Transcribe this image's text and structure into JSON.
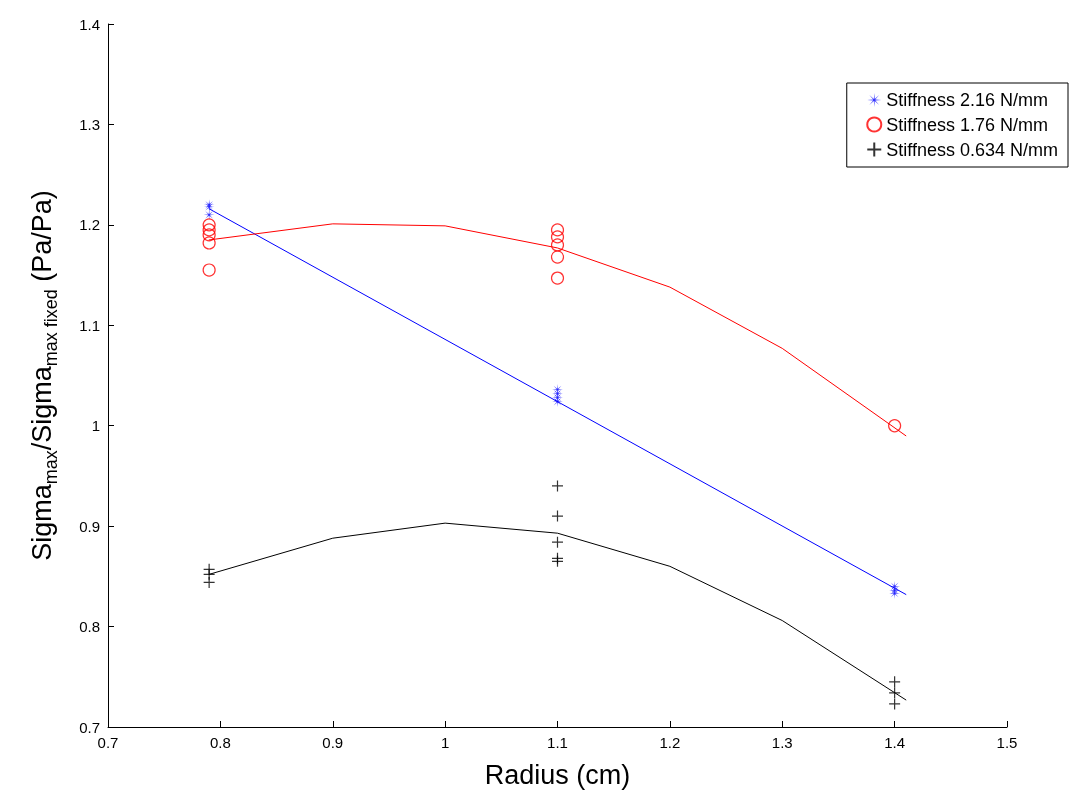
{
  "chart_data": {
    "type": "scatter",
    "xlabel": "Radius (cm)",
    "ylabel": "Sigma$_{max}$/Sigma$_{max fixed}$ (Pa/Pa)",
    "xlim": [
      0.7,
      1.5
    ],
    "xticks": [
      0.7,
      0.8,
      0.9,
      1,
      1.1,
      1.2,
      1.3,
      1.4,
      1.5
    ],
    "ylim": [
      0.7,
      1.4
    ],
    "yticks": [
      0.7,
      0.8,
      0.9,
      1,
      1.1,
      1.2,
      1.3,
      1.4
    ],
    "grid": false,
    "legend": "top right",
    "series": [
      {
        "name": "Stiffness 2.16 N/mm",
        "color": "#0000ff",
        "marker": "star",
        "x": [
          0.79,
          0.79,
          0.79,
          1.1,
          1.1,
          1.1,
          1.1,
          1.4,
          1.4,
          1.4
        ],
        "values": [
          1.22,
          1.218,
          1.21,
          1.036,
          1.032,
          1.028,
          1.024,
          0.84,
          0.836,
          0.833
        ]
      },
      {
        "name": "Stiffness 1.76 N/mm",
        "color": "#ff0000",
        "marker": "circle",
        "x": [
          0.79,
          0.79,
          0.79,
          0.79,
          0.79,
          1.1,
          1.1,
          1.1,
          1.1,
          1.1,
          1.4
        ],
        "values": [
          1.2,
          1.195,
          1.19,
          1.182,
          1.155,
          1.195,
          1.188,
          1.18,
          1.168,
          1.147,
          1.0
        ]
      },
      {
        "name": "Stiffness 0.634 N/mm",
        "color": "#000000",
        "marker": "cross",
        "x": [
          0.79,
          0.79,
          0.79,
          1.1,
          1.1,
          1.1,
          1.1,
          1.1,
          1.4,
          1.4,
          1.4
        ],
        "values": [
          0.857,
          0.852,
          0.844,
          0.94,
          0.91,
          0.884,
          0.868,
          0.865,
          0.745,
          0.734,
          0.723
        ]
      },
      {
        "type": "line",
        "color": "#0000ff",
        "marker": "none",
        "line_style": "solid",
        "x": [
          0.79,
          1.41
        ],
        "values": [
          1.216,
          0.832
        ]
      },
      {
        "type": "line",
        "color": "#ff0000",
        "marker": "none",
        "line_style": "solid",
        "x": [
          0.79,
          0.9,
          1.0,
          1.1,
          1.2,
          1.3,
          1.41
        ],
        "values": [
          1.185,
          1.201,
          1.199,
          1.177,
          1.138,
          1.077,
          0.99
        ]
      },
      {
        "type": "line",
        "color": "#000000",
        "marker": "none",
        "line_style": "solid",
        "x": [
          0.79,
          0.9,
          1.0,
          1.1,
          1.2,
          1.3,
          1.41
        ],
        "values": [
          0.852,
          0.888,
          0.903,
          0.893,
          0.86,
          0.806,
          0.727
        ]
      }
    ]
  }
}
